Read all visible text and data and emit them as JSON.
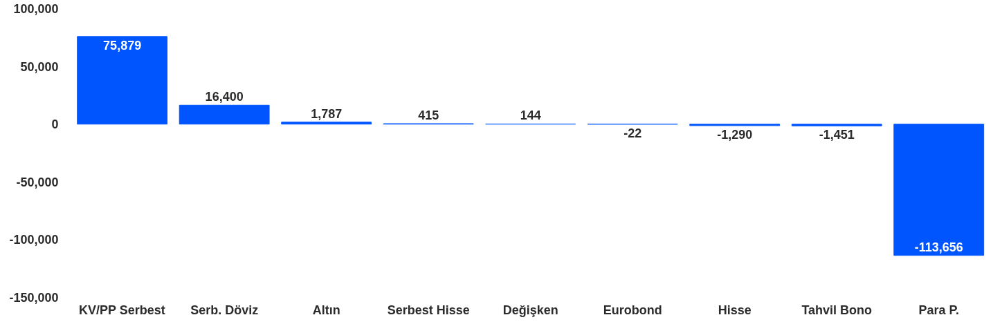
{
  "chart_data": {
    "type": "bar",
    "categories": [
      "KV/PP Serbest",
      "Serb. Döviz",
      "Altın",
      "Serbest Hisse",
      "Değişken",
      "Eurobond",
      "Hisse",
      "Tahvil Bono",
      "Para P."
    ],
    "values": [
      75879,
      16400,
      1787,
      415,
      144,
      -22,
      -1290,
      -1451,
      -113656
    ],
    "value_labels": [
      "75,879",
      "16,400",
      "1,787",
      "415",
      "144",
      "-22",
      "-1,290",
      "-1,451",
      "-113,656"
    ],
    "color": "#0055ff",
    "ylim": [
      -150000,
      100000
    ],
    "yticks": [
      {
        "value": -150000,
        "label": "-150,000"
      },
      {
        "value": -100000,
        "label": "-100,000"
      },
      {
        "value": -50000,
        "label": "-50,000"
      },
      0,
      {
        "value": 50000,
        "label": "50,000"
      },
      {
        "value": 100000,
        "label": "100,000"
      }
    ],
    "grid": false
  }
}
